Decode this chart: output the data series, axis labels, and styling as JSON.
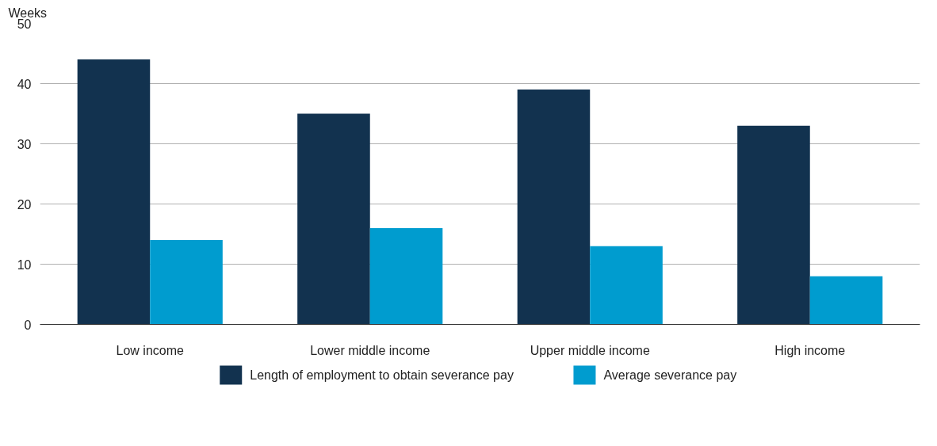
{
  "chart_data": {
    "type": "bar",
    "ylabel": "Weeks",
    "categories": [
      "Low income",
      "Lower middle income",
      "Upper middle income",
      "High income"
    ],
    "series": [
      {
        "name": "Length of employment to obtain severance pay",
        "color": "#12324f",
        "values": [
          44,
          35,
          39,
          33
        ]
      },
      {
        "name": "Average severance pay",
        "color": "#009ccf",
        "values": [
          14,
          16,
          13,
          8
        ]
      }
    ],
    "ylim": [
      0,
      50
    ],
    "yticks": [
      0,
      10,
      20,
      30,
      40,
      50
    ],
    "grid": "y",
    "legend": "bottom"
  }
}
